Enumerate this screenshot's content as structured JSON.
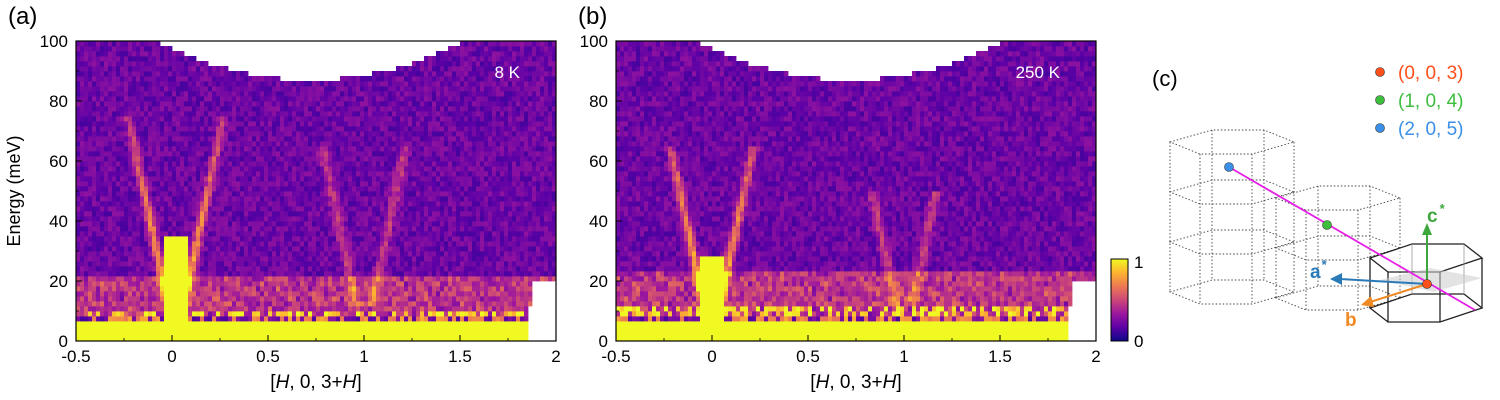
{
  "chart_data": [
    {
      "type": "heatmap",
      "panel_label": "(a)",
      "annotation": "8 K",
      "xlabel_parts": [
        "[",
        "H",
        ", 0, 3+",
        "H",
        "]"
      ],
      "ylabel": "Energy (meV)",
      "xlim": [
        -0.5,
        2
      ],
      "ylim": [
        0,
        100
      ],
      "xticks": [
        -0.5,
        0,
        0.5,
        1,
        1.5,
        2
      ],
      "xtick_labels": [
        "-0.5",
        "0",
        "0.5",
        "1",
        "1.5",
        "2"
      ],
      "yticks": [
        0,
        20,
        40,
        60,
        80,
        100
      ],
      "ytick_labels": [
        "0",
        "20",
        "40",
        "60",
        "80",
        "100"
      ],
      "features": {
        "cone_center_H": 0.02,
        "cone_slope_meV_per_rlu": 300,
        "cone_top_meV": 75,
        "secondary_cone_center_H": 1.0,
        "secondary_cone_top_meV": 65,
        "elastic_band_top_meV": 6,
        "bright_core_top_meV": 35,
        "low_energy_band_meV": [
          8,
          22
        ]
      }
    },
    {
      "type": "heatmap",
      "panel_label": "(b)",
      "annotation": "250 K",
      "xlabel_parts": [
        "[",
        "H",
        ", 0, 3+",
        "H",
        "]"
      ],
      "ylabel": "",
      "xlim": [
        -0.5,
        2
      ],
      "ylim": [
        0,
        100
      ],
      "xticks": [
        -0.5,
        0,
        0.5,
        1,
        1.5,
        2
      ],
      "xtick_labels": [
        "-0.5",
        "0",
        "0.5",
        "1",
        "1.5",
        "2"
      ],
      "yticks": [
        0,
        20,
        40,
        60,
        80,
        100
      ],
      "ytick_labels": [
        "0",
        "20",
        "40",
        "60",
        "80",
        "100"
      ],
      "features": {
        "cone_center_H": 0.0,
        "cone_slope_meV_per_rlu": 300,
        "cone_top_meV": 65,
        "secondary_cone_center_H": 1.0,
        "secondary_cone_top_meV": 50,
        "elastic_band_top_meV": 7,
        "bright_core_top_meV": 28,
        "low_energy_band_meV": [
          8,
          24
        ]
      }
    }
  ],
  "colorbar": {
    "min_label": "0",
    "max_label": "1",
    "colormap": "plasma",
    "stops": [
      "#0d0887",
      "#5c01a6",
      "#9c179e",
      "#cc4778",
      "#ed7953",
      "#fdb42f",
      "#f0f921"
    ]
  },
  "panel_c": {
    "label": "(c)",
    "legend": [
      {
        "label": "(0, 0, 3)",
        "color": "#ff4f1a"
      },
      {
        "label": "(1, 0, 4)",
        "color": "#3dbf3d"
      },
      {
        "label": "(2, 0, 5)",
        "color": "#3a8fe8"
      }
    ],
    "axes": {
      "a_star": {
        "label": "a",
        "sup": "*",
        "color": "#2a7ab8"
      },
      "b": {
        "label": "b",
        "color": "#f08a24"
      },
      "c_star": {
        "label": "c",
        "sup": "*",
        "color": "#3da63d"
      }
    },
    "line_color": "#e620e6"
  }
}
